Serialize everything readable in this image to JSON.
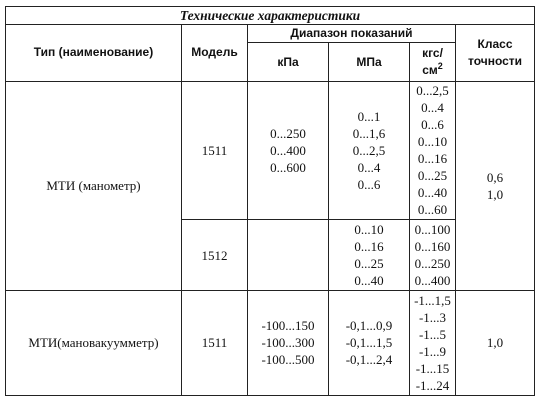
{
  "table": {
    "caption": "Технические характеристики",
    "headers": {
      "type": "Тип (наименование)",
      "model": "Модель",
      "range": "Диапазон показаний",
      "kpa": "кПа",
      "mpa": "МПа",
      "kgf_top": "кгс/",
      "kgf_bottom": "см",
      "kgf_sup": "2",
      "class_line1": "Класс",
      "class_line2": "точности"
    },
    "rows": [
      {
        "type": "МТИ (манометр)",
        "accuracy": [
          "0,6",
          "1,0"
        ],
        "models": [
          {
            "model": "1511",
            "kpa": [
              "0...250",
              "0...400",
              "0...600"
            ],
            "mpa": [
              "0...1",
              "0...1,6",
              "0...2,5",
              "0...4",
              "0...6"
            ],
            "kgf": [
              "0...2,5",
              "0...4",
              "0...6",
              "0...10",
              "0...16",
              "0...25",
              "0...40",
              "0...60"
            ]
          },
          {
            "model": "1512",
            "kpa": [],
            "mpa": [
              "0...10",
              "0...16",
              "0...25",
              "0...40"
            ],
            "kgf": [
              "0...100",
              "0...160",
              "0...250",
              "0...400"
            ]
          }
        ]
      },
      {
        "type": "МТИ(мановакуумметр)",
        "accuracy": [
          "1,0"
        ],
        "models": [
          {
            "model": "1511",
            "kpa": [
              "-100...150",
              "-100...300",
              "-100...500"
            ],
            "mpa": [
              "-0,1...0,9",
              "-0,1...1,5",
              "-0,1...2,4"
            ],
            "kgf": [
              "-1...1,5",
              "-1...3",
              "-1...5",
              "-1...9",
              "-1...15",
              "-1...24"
            ]
          }
        ]
      }
    ]
  }
}
